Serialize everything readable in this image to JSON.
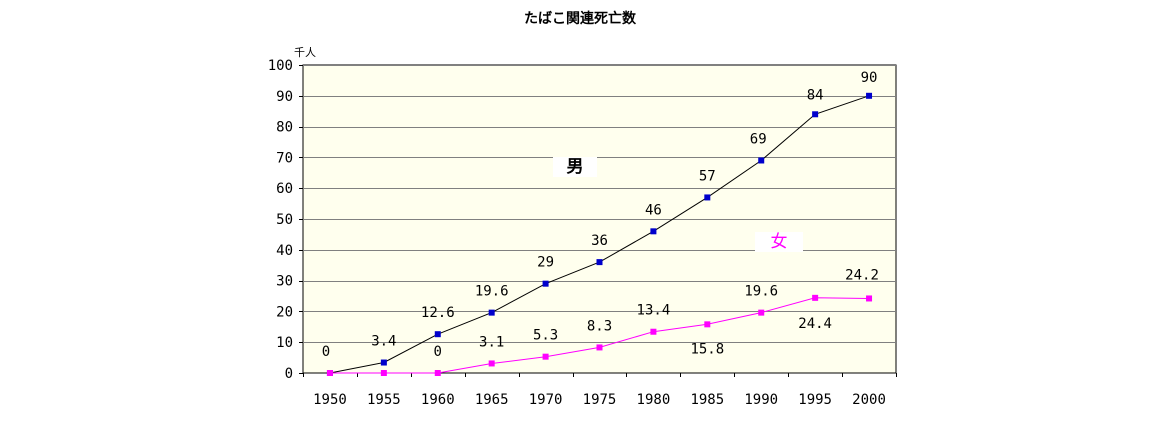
{
  "chart_data": {
    "type": "line",
    "title": "たばこ関連死亡数",
    "unit_label": "千人",
    "x": [
      1950,
      1955,
      1960,
      1965,
      1970,
      1975,
      1980,
      1985,
      1990,
      1995,
      2000
    ],
    "ylim": [
      0,
      100
    ],
    "yticks": [
      0,
      10,
      20,
      30,
      40,
      50,
      60,
      70,
      80,
      90,
      100
    ],
    "grid": true,
    "plot_background": "#ffffee",
    "series": [
      {
        "name": "男",
        "line_color": "#000000",
        "marker_color": "#0000cc",
        "label_color": "#000000",
        "values": [
          0,
          3.4,
          12.6,
          19.6,
          29,
          36,
          46,
          57,
          69,
          84,
          90
        ],
        "data_labels": [
          "0",
          "3.4",
          "12.6",
          "19.6",
          "29",
          "36",
          "46",
          "57",
          "69",
          "84",
          "90"
        ]
      },
      {
        "name": "女",
        "line_color": "#ff00ff",
        "marker_color": "#ff00ff",
        "label_color": "#ff00ff",
        "values": [
          0,
          0,
          0,
          3.1,
          5.3,
          8.3,
          13.4,
          15.8,
          19.6,
          24.4,
          24.2
        ],
        "data_labels": [
          "",
          "",
          "0",
          "3.1",
          "5.3",
          "8.3",
          "13.4",
          "15.8",
          "19.6",
          "24.4",
          "24.2"
        ]
      }
    ]
  }
}
